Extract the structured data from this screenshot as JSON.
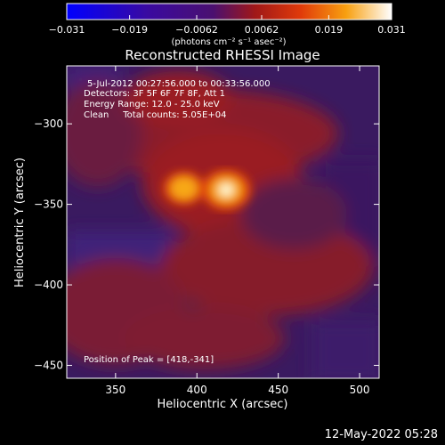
{
  "chart_data": {
    "type": "heatmap",
    "title": "Reconstructed RHESSI Image",
    "xlabel": "Heliocentric X (arcsec)",
    "ylabel": "Heliocentric Y (arcsec)",
    "xlim": [
      320,
      512
    ],
    "ylim": [
      -458,
      -264
    ],
    "x_ticks": [
      350,
      400,
      450,
      500
    ],
    "x_tick_labels": [
      "350",
      "400",
      "450",
      "500"
    ],
    "y_ticks": [
      -300,
      -350,
      -400,
      -450
    ],
    "y_tick_labels": [
      "−300",
      "−350",
      "−400",
      "−450"
    ],
    "colorbar": {
      "range": [
        -0.031,
        0.031
      ],
      "ticks": [
        -0.031,
        -0.019,
        -0.0062,
        0.0062,
        0.019,
        0.031
      ],
      "tick_labels": [
        "−0.031",
        "−0.019",
        "−0.0062",
        "0.0062",
        "0.019",
        "0.031"
      ],
      "units_label": "(photons cm⁻² s⁻¹ asec⁻²)"
    },
    "annotations": [
      "5-Jul-2012 00:27:56.000 to 00:33:56.000",
      "Detectors: 3F 5F 6F 7F 8F, Att 1",
      "Energy Range: 12.0 - 25.0 keV",
      "Clean     Total counts: 5.05E+04"
    ],
    "peak_label": "Position of Peak = [418,-341]",
    "peak": {
      "x": 418,
      "y": -341
    },
    "sources": [
      {
        "x": 418,
        "y": -341,
        "value": 0.031
      },
      {
        "x": 392,
        "y": -340,
        "value": 0.025
      }
    ],
    "background_value": -0.008
  },
  "footer": {
    "date": "12-May-2022 05:28"
  }
}
